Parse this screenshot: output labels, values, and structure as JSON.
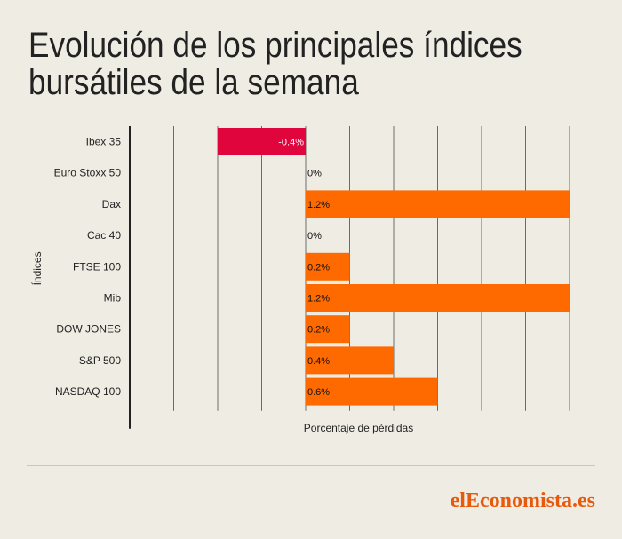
{
  "title_lines": [
    "Evolución de los principales índices",
    "bursátiles de la semana"
  ],
  "brand": {
    "part1": "el",
    "part2": "Eco",
    "part3": "nomista.es"
  },
  "colors": {
    "positive": "#ff6a00",
    "negative": "#e0063d",
    "background": "#efede3",
    "grid": "#555555"
  },
  "chart_data": {
    "type": "bar",
    "orientation": "horizontal",
    "title": "Evolución de los principales índices bursátiles de la semana",
    "xlabel": "Porcentaje de pérdidas",
    "ylabel": "Índices",
    "categories": [
      "Ibex 35",
      "Euro Stoxx 50",
      "Dax",
      "Cac 40",
      "FTSE 100",
      "Mib",
      "DOW JONES",
      "S&P 500",
      "NASDAQ 100"
    ],
    "values": [
      -0.4,
      0,
      1.2,
      0,
      0.2,
      1.2,
      0.2,
      0.4,
      0.6
    ],
    "data_labels": [
      "-0.4%",
      "0%",
      "1.2%",
      "0%",
      "0.2%",
      "1.2%",
      "0.2%",
      "0.4%",
      "0.6%"
    ],
    "xlim": [
      -0.8,
      1.2
    ],
    "grid": true,
    "legend": "none"
  }
}
